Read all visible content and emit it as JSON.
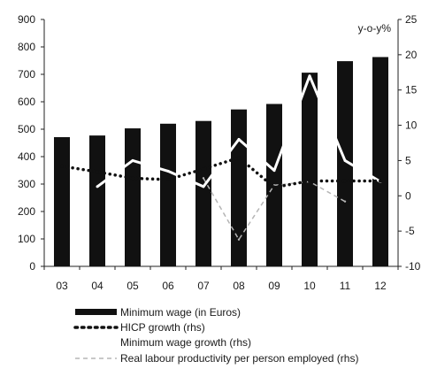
{
  "chart_data": {
    "type": "bar",
    "categories": [
      "03",
      "04",
      "05",
      "06",
      "07",
      "08",
      "09",
      "10",
      "11",
      "12"
    ],
    "y_left": {
      "ylim": [
        0,
        900
      ],
      "ticks": [
        0,
        100,
        200,
        300,
        400,
        500,
        600,
        700,
        800,
        900
      ]
    },
    "y_right": {
      "ylim": [
        -10,
        25
      ],
      "ticks": [
        -10,
        -5,
        0,
        5,
        10,
        15,
        20,
        25
      ],
      "unit_label": "y-o-y%"
    },
    "series": [
      {
        "name": "Minimum wage (in Euros)",
        "type": "bar",
        "axis": "left",
        "values": [
          471,
          477,
          503,
          520,
          530,
          572,
          592,
          706,
          748,
          763
        ]
      },
      {
        "name": "HICP growth (rhs)",
        "type": "line-dotted",
        "axis": "right",
        "values": [
          4.2,
          3.4,
          2.5,
          2.3,
          3.8,
          5.4,
          1.2,
          2.1,
          2.1,
          2.1
        ]
      },
      {
        "name": "Minimum wage growth (rhs)",
        "type": "line",
        "axis": "right",
        "values": [
          null,
          1.3,
          5.0,
          3.5,
          1.3,
          8.0,
          3.6,
          17.0,
          5.0,
          2.0
        ]
      },
      {
        "name": "Real labour productivity per person employed (rhs)",
        "type": "line-dashed",
        "axis": "right",
        "values": [
          null,
          null,
          null,
          null,
          2.5,
          -6.2,
          1.5,
          2.0,
          -0.8,
          null
        ]
      }
    ],
    "legend_position": "bottom-left"
  },
  "colors": {
    "bars": "#111111",
    "hicp": "#111111",
    "min_wage_growth": "#ffffff",
    "productivity": "#b5b5b5"
  }
}
